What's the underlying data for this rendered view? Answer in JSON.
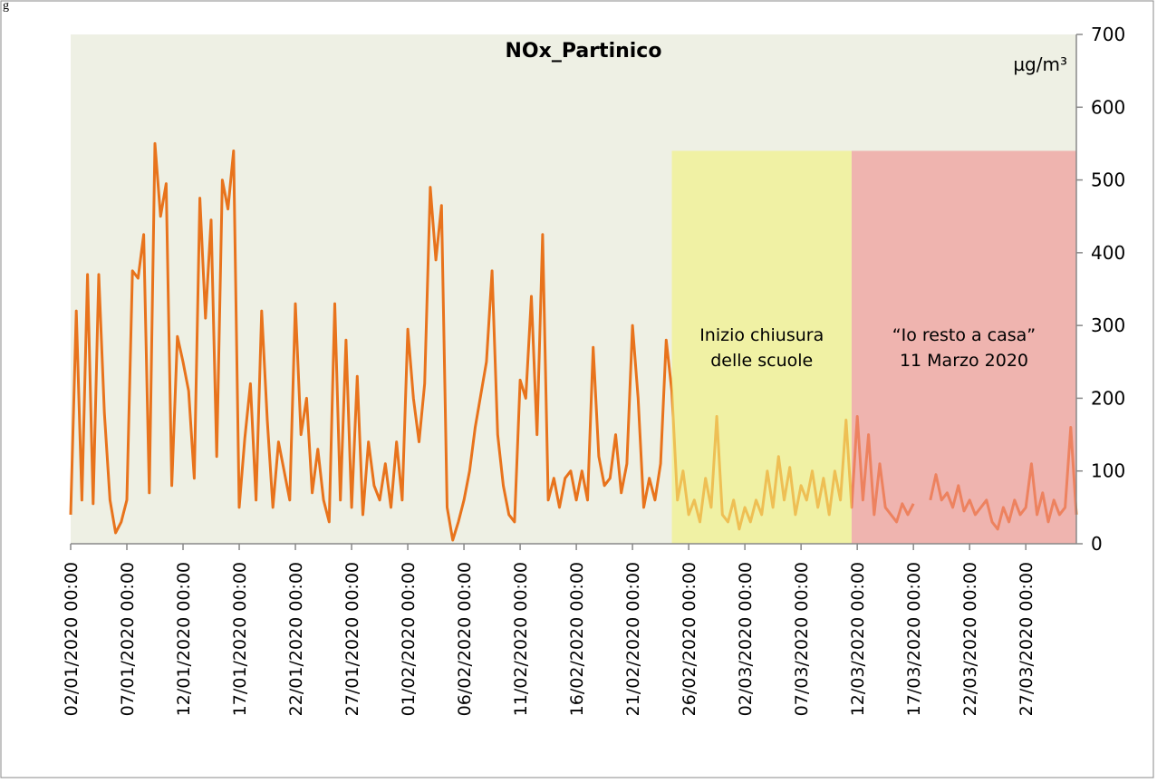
{
  "fragment": "g",
  "chart_data": {
    "type": "line",
    "title": "NOx_Partinico",
    "unit_label": "µg/m³",
    "x": [
      "02/01/2020 00:00",
      "02/01/2020 12:00",
      "03/01/2020 00:00",
      "03/01/2020 12:00",
      "04/01/2020 00:00",
      "04/01/2020 12:00",
      "05/01/2020 00:00",
      "05/01/2020 12:00",
      "06/01/2020 00:00",
      "06/01/2020 12:00",
      "07/01/2020 00:00",
      "07/01/2020 12:00",
      "08/01/2020 00:00",
      "08/01/2020 12:00",
      "09/01/2020 00:00",
      "09/01/2020 12:00",
      "10/01/2020 00:00",
      "10/01/2020 12:00",
      "11/01/2020 00:00",
      "11/01/2020 12:00",
      "12/01/2020 00:00",
      "12/01/2020 12:00",
      "13/01/2020 00:00",
      "13/01/2020 12:00",
      "14/01/2020 00:00",
      "14/01/2020 12:00",
      "15/01/2020 00:00",
      "15/01/2020 12:00",
      "16/01/2020 00:00",
      "16/01/2020 12:00",
      "17/01/2020 00:00",
      "17/01/2020 12:00",
      "18/01/2020 00:00",
      "18/01/2020 12:00",
      "19/01/2020 00:00",
      "19/01/2020 12:00",
      "20/01/2020 00:00",
      "20/01/2020 12:00",
      "21/01/2020 00:00",
      "21/01/2020 12:00",
      "22/01/2020 00:00",
      "22/01/2020 12:00",
      "23/01/2020 00:00",
      "23/01/2020 12:00",
      "24/01/2020 00:00",
      "24/01/2020 12:00",
      "25/01/2020 00:00",
      "25/01/2020 12:00",
      "26/01/2020 00:00",
      "26/01/2020 12:00",
      "27/01/2020 00:00",
      "27/01/2020 12:00",
      "28/01/2020 00:00",
      "28/01/2020 12:00",
      "29/01/2020 00:00",
      "29/01/2020 12:00",
      "30/01/2020 00:00",
      "30/01/2020 12:00",
      "31/01/2020 00:00",
      "31/01/2020 12:00",
      "01/02/2020 00:00",
      "01/02/2020 12:00",
      "02/02/2020 00:00",
      "02/02/2020 12:00",
      "03/02/2020 00:00",
      "03/02/2020 12:00",
      "04/02/2020 00:00",
      "04/02/2020 12:00",
      "05/02/2020 00:00",
      "05/02/2020 12:00",
      "06/02/2020 00:00",
      "06/02/2020 12:00",
      "07/02/2020 00:00",
      "07/02/2020 12:00",
      "08/02/2020 00:00",
      "08/02/2020 12:00",
      "09/02/2020 00:00",
      "09/02/2020 12:00",
      "10/02/2020 00:00",
      "10/02/2020 12:00",
      "11/02/2020 00:00",
      "11/02/2020 12:00",
      "12/02/2020 00:00",
      "12/02/2020 12:00",
      "13/02/2020 00:00",
      "13/02/2020 12:00",
      "14/02/2020 00:00",
      "14/02/2020 12:00",
      "15/02/2020 00:00",
      "15/02/2020 12:00",
      "16/02/2020 00:00",
      "16/02/2020 12:00",
      "17/02/2020 00:00",
      "17/02/2020 12:00",
      "18/02/2020 00:00",
      "18/02/2020 12:00",
      "19/02/2020 00:00",
      "19/02/2020 12:00",
      "20/02/2020 00:00",
      "20/02/2020 12:00",
      "21/02/2020 00:00",
      "21/02/2020 12:00",
      "22/02/2020 00:00",
      "22/02/2020 12:00",
      "23/02/2020 00:00",
      "23/02/2020 12:00",
      "24/02/2020 00:00",
      "24/02/2020 12:00",
      "25/02/2020 00:00",
      "25/02/2020 12:00",
      "26/02/2020 00:00",
      "26/02/2020 12:00",
      "27/02/2020 00:00",
      "27/02/2020 12:00",
      "28/02/2020 00:00",
      "28/02/2020 12:00",
      "29/02/2020 00:00",
      "29/02/2020 12:00",
      "01/03/2020 00:00",
      "01/03/2020 12:00",
      "02/03/2020 00:00",
      "02/03/2020 12:00",
      "03/03/2020 00:00",
      "03/03/2020 12:00",
      "04/03/2020 00:00",
      "04/03/2020 12:00",
      "05/03/2020 00:00",
      "05/03/2020 12:00",
      "06/03/2020 00:00",
      "06/03/2020 12:00",
      "07/03/2020 00:00",
      "07/03/2020 12:00",
      "08/03/2020 00:00",
      "08/03/2020 12:00",
      "09/03/2020 00:00",
      "09/03/2020 12:00",
      "10/03/2020 00:00",
      "10/03/2020 12:00",
      "11/03/2020 00:00",
      "11/03/2020 12:00",
      "12/03/2020 00:00",
      "12/03/2020 12:00",
      "13/03/2020 00:00",
      "13/03/2020 12:00",
      "14/03/2020 00:00",
      "14/03/2020 12:00",
      "15/03/2020 00:00",
      "15/03/2020 12:00",
      "16/03/2020 00:00",
      "16/03/2020 12:00",
      "17/03/2020 00:00",
      "17/03/2020 12:00",
      "18/03/2020 00:00",
      "18/03/2020 12:00",
      "19/03/2020 00:00",
      "19/03/2020 12:00",
      "20/03/2020 00:00",
      "20/03/2020 12:00",
      "21/03/2020 00:00",
      "21/03/2020 12:00",
      "22/03/2020 00:00",
      "22/03/2020 12:00",
      "23/03/2020 00:00",
      "23/03/2020 12:00",
      "24/03/2020 00:00",
      "24/03/2020 12:00",
      "25/03/2020 00:00",
      "25/03/2020 12:00",
      "26/03/2020 00:00",
      "26/03/2020 12:00",
      "27/03/2020 00:00",
      "27/03/2020 12:00",
      "28/03/2020 00:00",
      "28/03/2020 12:00",
      "29/03/2020 00:00",
      "29/03/2020 12:00",
      "30/03/2020 00:00",
      "30/03/2020 12:00",
      "31/03/2020 00:00",
      "31/03/2020 12:00"
    ],
    "series": [
      {
        "color": "#e8731c",
        "values": [
          40,
          320,
          60,
          370,
          55,
          370,
          180,
          60,
          15,
          30,
          60,
          375,
          365,
          425,
          70,
          550,
          450,
          495,
          80,
          285,
          250,
          210,
          90,
          475,
          310,
          445,
          120,
          500,
          460,
          540,
          50,
          145,
          220,
          60,
          320,
          170,
          50,
          140,
          100,
          60,
          330,
          150,
          200,
          70,
          130,
          60,
          30,
          330,
          60,
          280,
          50,
          230,
          40,
          140,
          80,
          60,
          110,
          50,
          140,
          60,
          295,
          200,
          140,
          220,
          490,
          390,
          465,
          50,
          5,
          30,
          60,
          100,
          160,
          205,
          250,
          375,
          150,
          80,
          40,
          30,
          225,
          200,
          340,
          150,
          425,
          60,
          90,
          50,
          90,
          100,
          60,
          100,
          60,
          270,
          120,
          80,
          90,
          150,
          70,
          110,
          300,
          200,
          50,
          90,
          60,
          110,
          280,
          210,
          60,
          100,
          40,
          60,
          30,
          90,
          50,
          175,
          40,
          30,
          60,
          20,
          50,
          30,
          60,
          40,
          100,
          50,
          120,
          60,
          105,
          40,
          80,
          60,
          100,
          50,
          90,
          40,
          100,
          60,
          170,
          50,
          175,
          60,
          150,
          40,
          110,
          50,
          40,
          30,
          55,
          40,
          55,
          null,
          null,
          60,
          95,
          60,
          70,
          50,
          80,
          45,
          60,
          40,
          50,
          60,
          30,
          20,
          50,
          30,
          60,
          40,
          50,
          110,
          40,
          70,
          30,
          60,
          40,
          50,
          160,
          40
        ]
      }
    ],
    "xticks": [
      "02/01/2020 00:00",
      "07/01/2020 00:00",
      "12/01/2020 00:00",
      "17/01/2020 00:00",
      "22/01/2020 00:00",
      "27/01/2020 00:00",
      "01/02/2020 00:00",
      "06/02/2020 00:00",
      "11/02/2020 00:00",
      "16/02/2020 00:00",
      "21/02/2020 00:00",
      "26/02/2020 00:00",
      "02/03/2020 00:00",
      "07/03/2020 00:00",
      "12/03/2020 00:00",
      "17/03/2020 00:00",
      "22/03/2020 00:00",
      "27/03/2020 00:00"
    ],
    "ylim": [
      0,
      700
    ],
    "yticks": [
      0,
      100,
      200,
      300,
      400,
      500,
      600,
      700
    ],
    "plot_background": "#eef0e4",
    "regions": [
      {
        "start": "24/02/2020 12:00",
        "end": "11/03/2020 12:00",
        "top": 540,
        "color": "#f2f27a",
        "label": [
          "Inizio chiusura",
          "delle scuole"
        ]
      },
      {
        "start": "11/03/2020 12:00",
        "end": "31/03/2020 12:00",
        "top": 540,
        "color": "#f08c8c",
        "label": [
          "“Io resto a casa”",
          "11 Marzo 2020"
        ]
      }
    ]
  }
}
